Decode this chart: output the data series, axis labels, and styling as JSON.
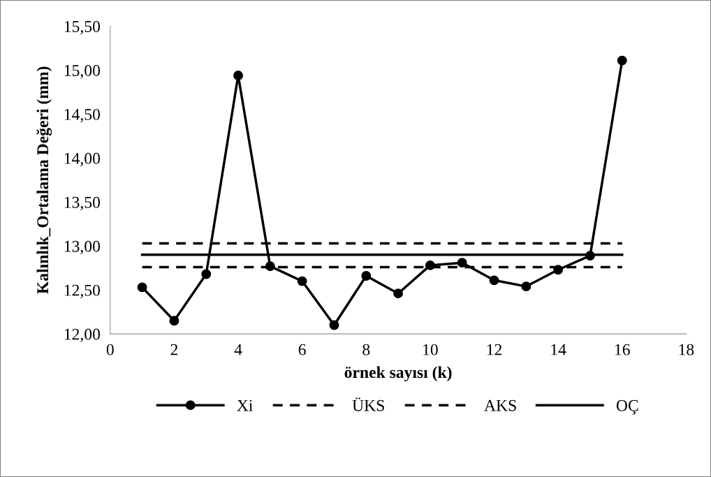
{
  "chart_data": {
    "type": "line",
    "xlabel": "örnek sayısı (k)",
    "ylabel": "Kalınlık_Ortalama Değeri (mm)",
    "x": [
      1,
      2,
      3,
      4,
      5,
      6,
      7,
      8,
      9,
      10,
      11,
      12,
      13,
      14,
      15,
      16
    ],
    "series": [
      {
        "name": "Xi",
        "color": "#000000",
        "marker": "circle",
        "line_style": "solid",
        "values": [
          12.53,
          12.15,
          12.68,
          14.94,
          12.77,
          12.6,
          12.1,
          12.66,
          12.46,
          12.78,
          12.81,
          12.61,
          12.54,
          12.73,
          12.89,
          15.11
        ]
      },
      {
        "name": "ÜKS",
        "color": "#000000",
        "marker": "none",
        "line_style": "dashed",
        "values": [
          13.03,
          13.03,
          13.03,
          13.03,
          13.03,
          13.03,
          13.03,
          13.03,
          13.03,
          13.03,
          13.03,
          13.03,
          13.03,
          13.03,
          13.03,
          13.03
        ]
      },
      {
        "name": "AKS",
        "color": "#000000",
        "marker": "none",
        "line_style": "dashed",
        "values": [
          12.76,
          12.76,
          12.76,
          12.76,
          12.76,
          12.76,
          12.76,
          12.76,
          12.76,
          12.76,
          12.76,
          12.76,
          12.76,
          12.76,
          12.76,
          12.76
        ]
      },
      {
        "name": "OÇ",
        "color": "#000000",
        "marker": "none",
        "line_style": "solid",
        "values": [
          12.9,
          12.9,
          12.9,
          12.9,
          12.9,
          12.9,
          12.9,
          12.9,
          12.9,
          12.9,
          12.9,
          12.9,
          12.9,
          12.9,
          12.9,
          12.9
        ]
      }
    ],
    "xlim": [
      0,
      18
    ],
    "xticks": [
      0,
      2,
      4,
      6,
      8,
      10,
      12,
      14,
      16,
      18
    ],
    "ylim": [
      12,
      15.5
    ],
    "yticks": [
      {
        "value": 12,
        "label": "12,00"
      },
      {
        "value": 12.5,
        "label": "12,50"
      },
      {
        "value": 13,
        "label": "13,00"
      },
      {
        "value": 13.5,
        "label": "13,50"
      },
      {
        "value": 14,
        "label": "14,00"
      },
      {
        "value": 14.5,
        "label": "14,50"
      },
      {
        "value": 15,
        "label": "15,00"
      },
      {
        "value": 15.5,
        "label": "15,50"
      }
    ],
    "grid": false,
    "legend": "bottom"
  }
}
